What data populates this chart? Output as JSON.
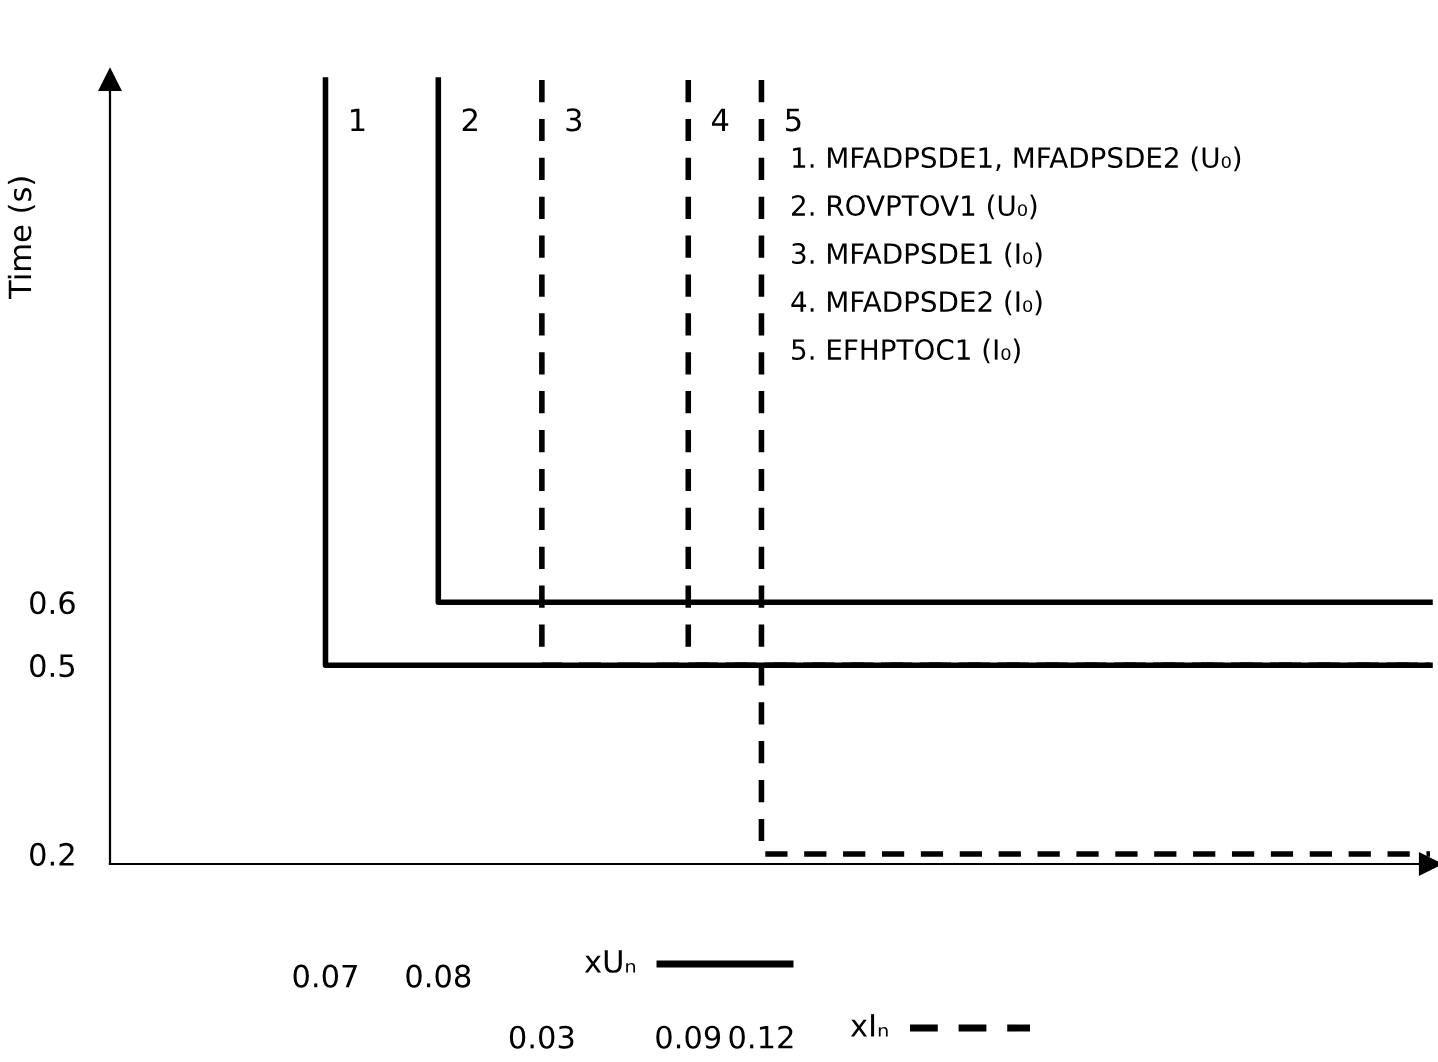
{
  "chart_data": {
    "type": "step",
    "ylabel": "Time (s)",
    "xlabel": "xUₙ",
    "x2label": "xIₙ",
    "xlim": [
      0.0509,
      0.1679
    ],
    "xticks": [
      0.07,
      0.08
    ],
    "x2lim": [
      -0.147,
      0.394
    ],
    "x2ticks": [
      0.03,
      0.09,
      0.12
    ],
    "ylim": [
      0.184,
      1.43
    ],
    "yticks": [
      0.2,
      0.5,
      0.6
    ],
    "series": [
      {
        "name": "1",
        "color": "#000000",
        "line_style": "solid",
        "x": [
          0.07,
          0.07,
          0.1679
        ],
        "values": [
          1.43,
          0.5,
          0.5
        ]
      },
      {
        "name": "2",
        "color": "#000000",
        "line_style": "solid",
        "x": [
          0.08,
          0.08,
          0.1679
        ],
        "values": [
          1.43,
          0.6,
          0.6
        ]
      },
      {
        "name": "3",
        "color": "#000000",
        "line_style": "dashed",
        "axis": "x2",
        "x": [
          0.03,
          0.03,
          0.394
        ],
        "values": [
          1.43,
          0.5,
          0.5
        ]
      },
      {
        "name": "4",
        "color": "#000000",
        "line_style": "dashed",
        "axis": "x2",
        "x": [
          0.09,
          0.09,
          0.394
        ],
        "values": [
          1.43,
          0.5,
          0.5
        ]
      },
      {
        "name": "5",
        "color": "#000000",
        "line_style": "dashed",
        "axis": "x2",
        "x": [
          0.12,
          0.12,
          0.394
        ],
        "values": [
          1.43,
          0.2,
          0.2
        ]
      }
    ],
    "annotations": [
      "1. MFADPSDE1, MFADPSDE2 (U₀)",
      "2. ROVPTOV1 (U₀)",
      "3. MFADPSDE1 (I₀)",
      "4. MFADPSDE2 (I₀)",
      "5. EFHPTOC1 (I₀)"
    ],
    "legend": false,
    "grid": false,
    "marker": "none"
  }
}
